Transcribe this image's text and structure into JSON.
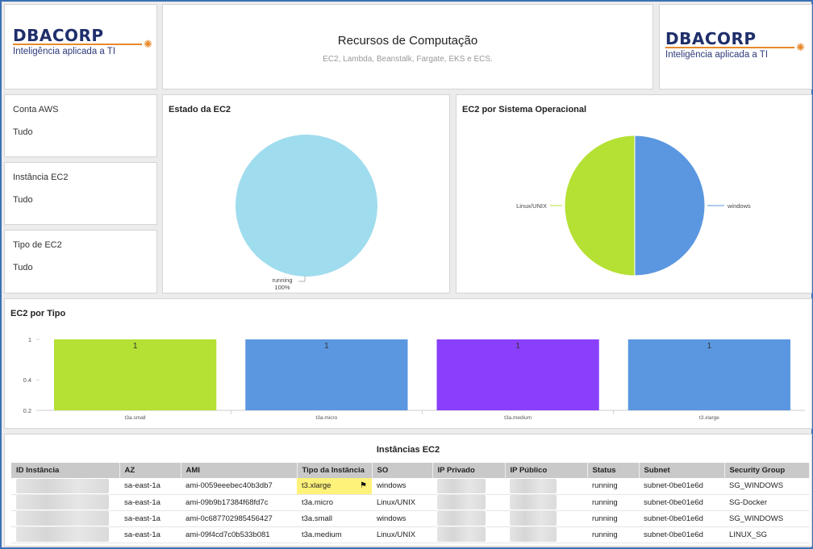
{
  "header": {
    "logo_left": {
      "name": "DBACORP",
      "tagline": "Inteligência aplicada a TI"
    },
    "title": "Recursos de Computação",
    "subtitle": "EC2, Lambda, Beanstalk, Fargate, EKS e ECS.",
    "logo_right": {
      "name": "DBACORP",
      "tagline": "Inteligência aplicada a TI"
    }
  },
  "filters": [
    {
      "label": "Conta AWS",
      "value": "Tudo"
    },
    {
      "label": "Instância EC2",
      "value": "Tudo"
    },
    {
      "label": "Tipo de EC2",
      "value": "Tudo"
    }
  ],
  "colors": {
    "brand_navy": "#1f2f6b",
    "brand_orange": "#e8892a",
    "running": "#9fdcee",
    "linux": "#b5e034",
    "windows": "#5b97e0",
    "purple": "#8a3ffc",
    "highlight": "#fff27a"
  },
  "chart_data": [
    {
      "type": "pie",
      "title": "Estado da EC2",
      "labels": [
        "running"
      ],
      "values": [
        100
      ],
      "slice_label": "100%"
    },
    {
      "type": "pie",
      "title": "EC2 por Sistema Operacional",
      "labels": [
        "Linux/UNIX",
        "windows"
      ],
      "values": [
        50,
        50
      ]
    },
    {
      "type": "bar",
      "title": "EC2 por Tipo",
      "categories": [
        "t3a.small",
        "t3a.micro",
        "t3a.medium",
        "t3.xlarge"
      ],
      "values": [
        1,
        1,
        1,
        1
      ],
      "yscale": "log",
      "yticks": [
        "1",
        "0.4",
        "0.2"
      ],
      "ylim": [
        0.2,
        1
      ]
    }
  ],
  "table": {
    "title": "Instâncias EC2",
    "columns": [
      "ID Instância",
      "AZ",
      "AMI",
      "Tipo da Instância",
      "SO",
      "IP Privado",
      "IP Público",
      "Status",
      "Subnet",
      "Security Group"
    ],
    "rows": [
      {
        "az": "sa-east-1a",
        "ami": "ami-0059eeebec40b3db7",
        "type": "t3.xlarge",
        "os": "windows",
        "status": "running",
        "subnet": "subnet-0be01e6d",
        "sg": "SG_WINDOWS"
      },
      {
        "az": "sa-east-1a",
        "ami": "ami-09b9b17384f68fd7c",
        "type": "t3a.micro",
        "os": "Linux/UNIX",
        "status": "running",
        "subnet": "subnet-0be01e6d",
        "sg": "SG-Docker"
      },
      {
        "az": "sa-east-1a",
        "ami": "ami-0c687702985456427",
        "type": "t3a.small",
        "os": "windows",
        "status": "running",
        "subnet": "subnet-0be01e6d",
        "sg": "SG_WINDOWS"
      },
      {
        "az": "sa-east-1a",
        "ami": "ami-09f4cd7c0b533b081",
        "type": "t3a.medium",
        "os": "Linux/UNIX",
        "status": "running",
        "subnet": "subnet-0be01e6d",
        "sg": "LINUX_SG"
      }
    ]
  }
}
